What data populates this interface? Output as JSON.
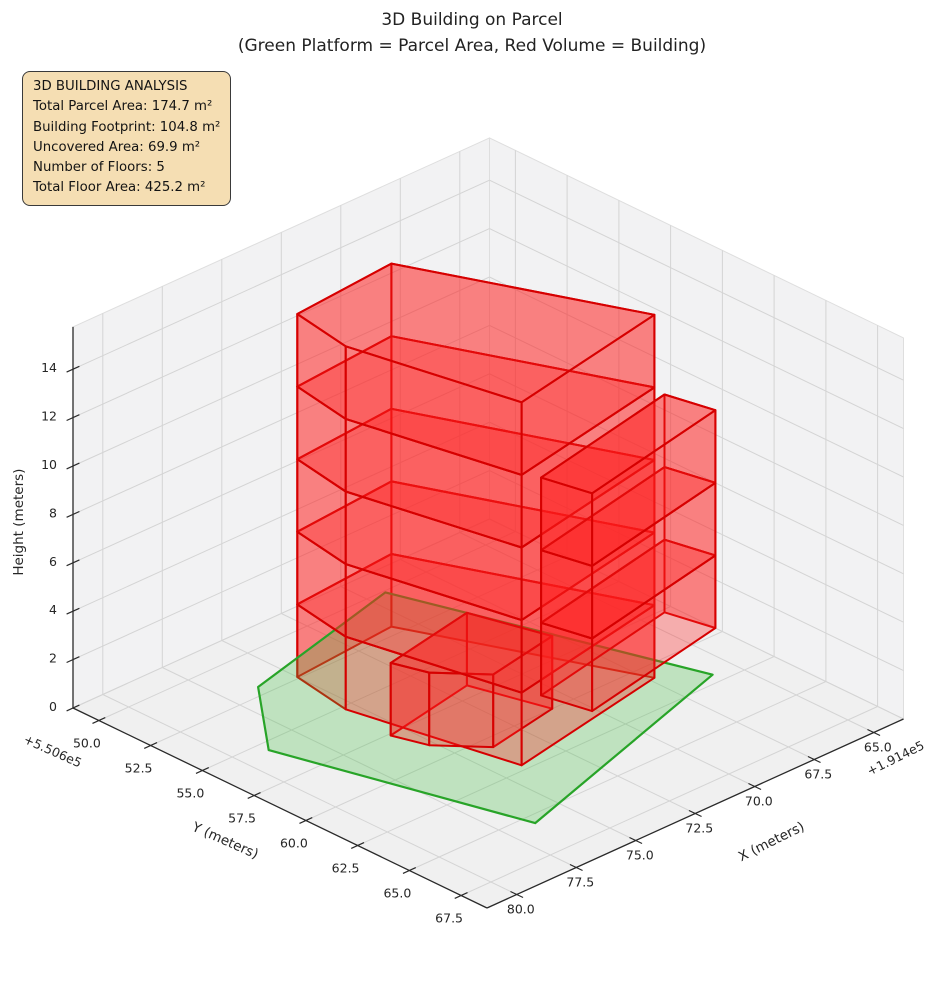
{
  "figure": {
    "title_line1": "3D Building on Parcel",
    "title_line2": "(Green Platform = Parcel Area, Red Volume = Building)",
    "background": "#ffffff"
  },
  "info_box": {
    "lines": [
      "3D BUILDING ANALYSIS",
      "Total Parcel Area: 174.7 m²",
      "Building Footprint: 104.8 m²",
      "Uncovered Area: 69.9 m²",
      "Number of Floors: 5",
      "Total Floor Area: 425.2 m²"
    ],
    "bg_color": "#f5deb3",
    "border_color": "#3a3a3a"
  },
  "chart_data": {
    "type": "3d_building_plot",
    "title": "3D Building on Parcel",
    "subtitle": "(Green Platform = Parcel Area, Red Volume = Building)",
    "axes": {
      "x": {
        "label": "X (meters)",
        "offset_text": "+1.914e5",
        "ticks": [
          65.0,
          67.5,
          70.0,
          72.5,
          75.0,
          77.5,
          80.0
        ],
        "range": [
          63.75,
          81.25
        ]
      },
      "y": {
        "label": "Y (meters)",
        "offset_text": "+5.506e5",
        "ticks": [
          50.0,
          52.5,
          55.0,
          57.5,
          60.0,
          62.5,
          65.0,
          67.5
        ],
        "range": [
          48.75,
          68.75
        ]
      },
      "z": {
        "label": "Height (meters)",
        "ticks": [
          0,
          2,
          4,
          6,
          8,
          10,
          12,
          14
        ],
        "range": [
          0,
          15.75
        ]
      }
    },
    "parcel": {
      "name": "parcel-area",
      "polygon": [
        [
          69.3,
          50.1
        ],
        [
          76.3,
          52.0
        ],
        [
          78.9,
          55.5
        ],
        [
          76.4,
          65.5
        ],
        [
          65.9,
          62.0
        ]
      ],
      "fill": "#3cbe3c",
      "edge": "#28a428",
      "opacity": 0.27
    },
    "building": {
      "fill": "#ff2020",
      "edge": "#d60000",
      "opacity": 0.32,
      "floor_height": 3,
      "total_floors": 5,
      "parts": [
        {
          "name": "main-tower",
          "footprint": [
            [
              70.7,
              52.0
            ],
            [
              75.0,
              52.4
            ],
            [
              75.4,
              55.2
            ],
            [
              74.1,
              62.2
            ],
            [
              67.3,
              60.8
            ]
          ],
          "z0": 0,
          "z1": 15
        },
        {
          "name": "right-tower",
          "footprint": [
            [
              73.8,
              62.8
            ],
            [
              67.4,
              61.4
            ],
            [
              67.0,
              63.4
            ],
            [
              73.4,
              64.8
            ]
          ],
          "z0": 3,
          "z1": 12
        },
        {
          "name": "front-annex",
          "footprint": [
            [
              75.6,
              57.6
            ],
            [
              71.7,
              56.8
            ],
            [
              70.9,
              60.0
            ],
            [
              73.9,
              60.6
            ],
            [
              75.2,
              59.0
            ]
          ],
          "z0": 0,
          "z1": 3
        }
      ]
    },
    "style": {
      "pane_color": "#f2f2f3",
      "floor_pane_color": "#f0f0f0",
      "pane_edge_color": "#dedede",
      "grid_color": "#d4d4d4",
      "spine_color": "#2a2a2a",
      "tick_color": "#262626",
      "label_color": "#262626"
    }
  }
}
